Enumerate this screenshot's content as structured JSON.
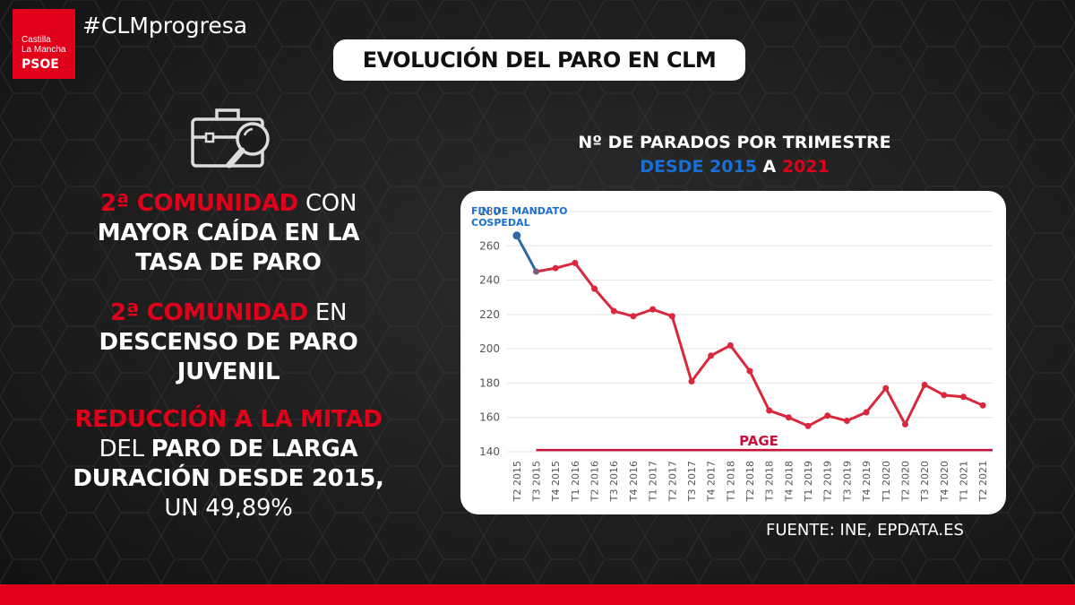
{
  "brand": {
    "line1": "Castilla",
    "line2": "La Mancha",
    "line3": "PSOE",
    "color": "#e1001a"
  },
  "hashtag": "#CLMprogresa",
  "title": "EVOLUCIÓN DEL PARO EN CLM",
  "icons": {
    "main": "briefcase-search-icon"
  },
  "highlights": [
    {
      "red": "2ª COMUNIDAD",
      "white_inline": " CON",
      "white_rest": [
        "MAYOR CAÍDA EN LA",
        "TASA DE PARO"
      ]
    },
    {
      "red": "2ª COMUNIDAD",
      "white_inline": " EN",
      "white_rest": [
        "DESCENSO DE PARO",
        "JUVENIL"
      ]
    },
    {
      "red": "REDUCCIÓN A LA MITAD",
      "lines": [
        {
          "light": "DEL ",
          "bold": "PARO DE LARGA"
        },
        {
          "bold": "DURACIÓN DESDE 2015,"
        },
        {
          "light": "UN 49,89%"
        }
      ]
    }
  ],
  "chart_title": {
    "line1": "Nº DE PARADOS POR TRIMESTRE",
    "part_blue1": "DESDE 2015",
    "part_mid": " A ",
    "part_red": "2021"
  },
  "source": "FUENTE: INE, EPDATA.ES",
  "chart_data": {
    "type": "line",
    "categories": [
      "T2 2015",
      "T3 2015",
      "T4 2015",
      "T1 2016",
      "T2 2016",
      "T3 2016",
      "T4 2016",
      "T1 2017",
      "T2 2017",
      "T3 2017",
      "T4 2017",
      "T1 2018",
      "T2 2018",
      "T3 2018",
      "T4 2018",
      "T1 2019",
      "T2 2019",
      "T3 2019",
      "T4 2019",
      "T1 2020",
      "T2 2020",
      "T3 2020",
      "T4 2020",
      "T1 2021",
      "T2 2021"
    ],
    "values": [
      266,
      245,
      247,
      250,
      235,
      222,
      219,
      223,
      219,
      181,
      196,
      202,
      187,
      164,
      160,
      155,
      161,
      158,
      163,
      177,
      156,
      179,
      173,
      172,
      167
    ],
    "ylim": [
      140,
      280
    ],
    "yticks": [
      140,
      160,
      180,
      200,
      220,
      240,
      260,
      280
    ],
    "grid": true,
    "colors": {
      "main": "#d9283c",
      "first_segment": "#2f6aa3",
      "reference": "#c8103a"
    },
    "annotations": {
      "start_label_line1": "FIN DE MANDATO",
      "start_label_line2": "COSPEDAL",
      "reference_line_label": "PAGE",
      "reference_value": 141
    }
  }
}
